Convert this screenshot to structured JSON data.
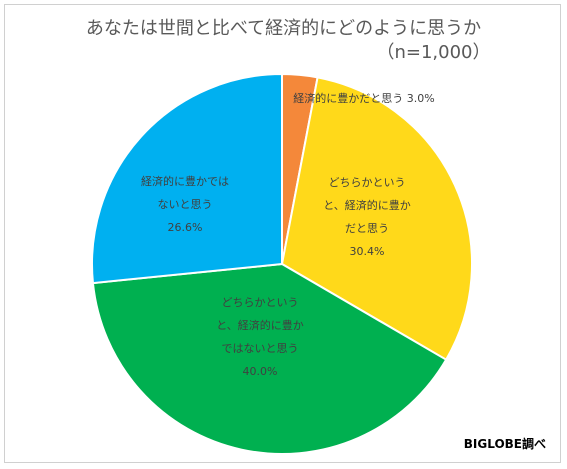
{
  "title_line1": "あなたは世間と比べて経済的にどのように思うか",
  "title_line2": "（n=1,000）",
  "source": "BIGLOBE調べ",
  "chart_data": {
    "type": "pie",
    "title": "あなたは世間と比べて経済的にどのように思うか（n=1,000）",
    "slices": [
      {
        "label_lines": [
          "経済的に豊かだと思う 3.0%"
        ],
        "value": 3.0,
        "color": "#F4883A"
      },
      {
        "label_lines": [
          "どちらかというと、経済的に豊か",
          "だと思う",
          "30.4%"
        ],
        "label_wrapped": [
          "どちらかという",
          "と、経済的に豊か",
          "だと思う",
          "30.4%"
        ],
        "value": 30.4,
        "color": "#FFD91A"
      },
      {
        "label_lines": [
          "どちらかというと、経済的に豊か",
          "ではないと思う",
          "40.0%"
        ],
        "label_wrapped": [
          "どちらかという",
          "と、経済的に豊か",
          "ではないと思う",
          "40.0%"
        ],
        "value": 40.0,
        "color": "#00B050"
      },
      {
        "label_lines": [
          "経済的に豊かでは",
          "ないと思う",
          "26.6%"
        ],
        "label_wrapped": [
          "経済的に豊かでは",
          "ないと思う",
          "26.6%"
        ],
        "value": 26.6,
        "color": "#00B0F0"
      }
    ]
  }
}
